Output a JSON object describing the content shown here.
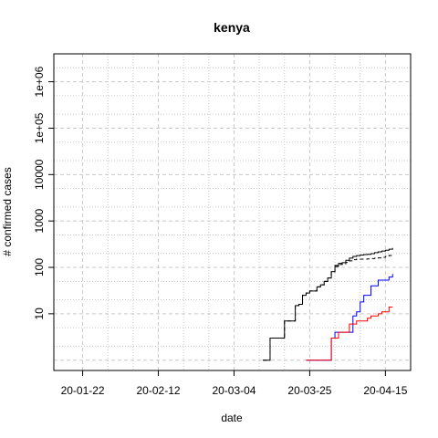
{
  "chart_data": {
    "type": "line",
    "title": "kenya",
    "xlabel": "date",
    "ylabel": "# confirmed cases",
    "x_scale": "date",
    "y_scale": "log",
    "xlim": [
      "2020-01-14",
      "2020-04-22"
    ],
    "ylim": [
      0.6,
      4000000
    ],
    "x_ticks": [
      {
        "date": "2020-01-22",
        "label": "20-01-22"
      },
      {
        "date": "2020-02-12",
        "label": "20-02-12"
      },
      {
        "date": "2020-03-04",
        "label": "20-03-04"
      },
      {
        "date": "2020-03-25",
        "label": "20-03-25"
      },
      {
        "date": "2020-04-15",
        "label": "20-04-15"
      }
    ],
    "y_ticks": [
      {
        "value": 10,
        "label": "10"
      },
      {
        "value": 100,
        "label": "100"
      },
      {
        "value": 1000,
        "label": "1000"
      },
      {
        "value": 10000,
        "label": "10000"
      },
      {
        "value": 100000,
        "label": "1e+05"
      },
      {
        "value": 1000000,
        "label": "1e+06"
      }
    ],
    "grid": true,
    "series": [
      {
        "color": "#000000",
        "dash": "solid",
        "x": [
          "2020-03-12",
          "2020-03-13",
          "2020-03-14",
          "2020-03-15",
          "2020-03-16",
          "2020-03-17",
          "2020-03-18",
          "2020-03-19",
          "2020-03-20",
          "2020-03-21",
          "2020-03-22",
          "2020-03-23",
          "2020-03-24",
          "2020-03-25",
          "2020-03-26",
          "2020-03-27",
          "2020-03-28",
          "2020-03-29",
          "2020-03-30",
          "2020-03-31",
          "2020-04-01",
          "2020-04-02",
          "2020-04-03",
          "2020-04-04",
          "2020-04-05",
          "2020-04-06",
          "2020-04-07",
          "2020-04-08",
          "2020-04-09",
          "2020-04-10",
          "2020-04-11",
          "2020-04-12",
          "2020-04-13",
          "2020-04-14",
          "2020-04-15",
          "2020-04-16",
          "2020-04-17"
        ],
        "y": [
          1,
          1,
          3,
          3,
          3,
          3,
          7,
          7,
          7,
          15,
          16,
          25,
          28,
          31,
          31,
          38,
          42,
          50,
          59,
          81,
          110,
          122,
          126,
          142,
          158,
          172,
          179,
          184,
          189,
          191,
          197,
          208,
          216,
          225,
          234,
          246,
          262
        ]
      },
      {
        "color": "#000000",
        "dash": "dashed",
        "x": [
          "2020-03-12",
          "2020-03-13",
          "2020-03-14",
          "2020-03-15",
          "2020-03-16",
          "2020-03-17",
          "2020-03-18",
          "2020-03-19",
          "2020-03-20",
          "2020-03-21",
          "2020-03-22",
          "2020-03-23",
          "2020-03-24",
          "2020-03-25",
          "2020-03-26",
          "2020-03-27",
          "2020-03-28",
          "2020-03-29",
          "2020-03-30",
          "2020-03-31",
          "2020-04-01",
          "2020-04-02",
          "2020-04-03",
          "2020-04-04",
          "2020-04-05",
          "2020-04-06",
          "2020-04-07",
          "2020-04-08",
          "2020-04-09",
          "2020-04-10",
          "2020-04-11",
          "2020-04-12",
          "2020-04-13",
          "2020-04-14",
          "2020-04-15",
          "2020-04-16",
          "2020-04-17"
        ],
        "y": [
          1,
          1,
          3,
          3,
          3,
          3,
          7,
          7,
          7,
          15,
          16,
          25,
          28,
          31,
          31,
          38,
          42,
          50,
          59,
          80,
          105,
          115,
          118,
          128,
          138,
          146,
          150,
          150,
          150,
          152,
          155,
          157,
          160,
          165,
          172,
          180,
          190
        ]
      },
      {
        "color": "#0000ff",
        "dash": "solid",
        "x": [
          "2020-03-24",
          "2020-03-30",
          "2020-03-31",
          "2020-04-01",
          "2020-04-02",
          "2020-04-03",
          "2020-04-04",
          "2020-04-05",
          "2020-04-06",
          "2020-04-07",
          "2020-04-08",
          "2020-04-09",
          "2020-04-10",
          "2020-04-11",
          "2020-04-12",
          "2020-04-13",
          "2020-04-14",
          "2020-04-15",
          "2020-04-16",
          "2020-04-17"
        ],
        "y": [
          1,
          1,
          3,
          4,
          4,
          4,
          4,
          4,
          9,
          11,
          18,
          25,
          25,
          40,
          40,
          53,
          53,
          53,
          62,
          72
        ]
      },
      {
        "color": "#ff0000",
        "dash": "solid",
        "x": [
          "2020-03-24",
          "2020-03-30",
          "2020-03-31",
          "2020-04-01",
          "2020-04-02",
          "2020-04-03",
          "2020-04-04",
          "2020-04-05",
          "2020-04-06",
          "2020-04-07",
          "2020-04-08",
          "2020-04-09",
          "2020-04-10",
          "2020-04-11",
          "2020-04-12",
          "2020-04-13",
          "2020-04-14",
          "2020-04-15",
          "2020-04-16",
          "2020-04-17"
        ],
        "y": [
          1,
          1,
          3,
          3,
          4,
          4,
          4,
          6,
          6,
          7,
          7,
          7,
          8,
          9,
          9,
          10,
          11,
          11,
          14,
          14
        ]
      }
    ]
  }
}
